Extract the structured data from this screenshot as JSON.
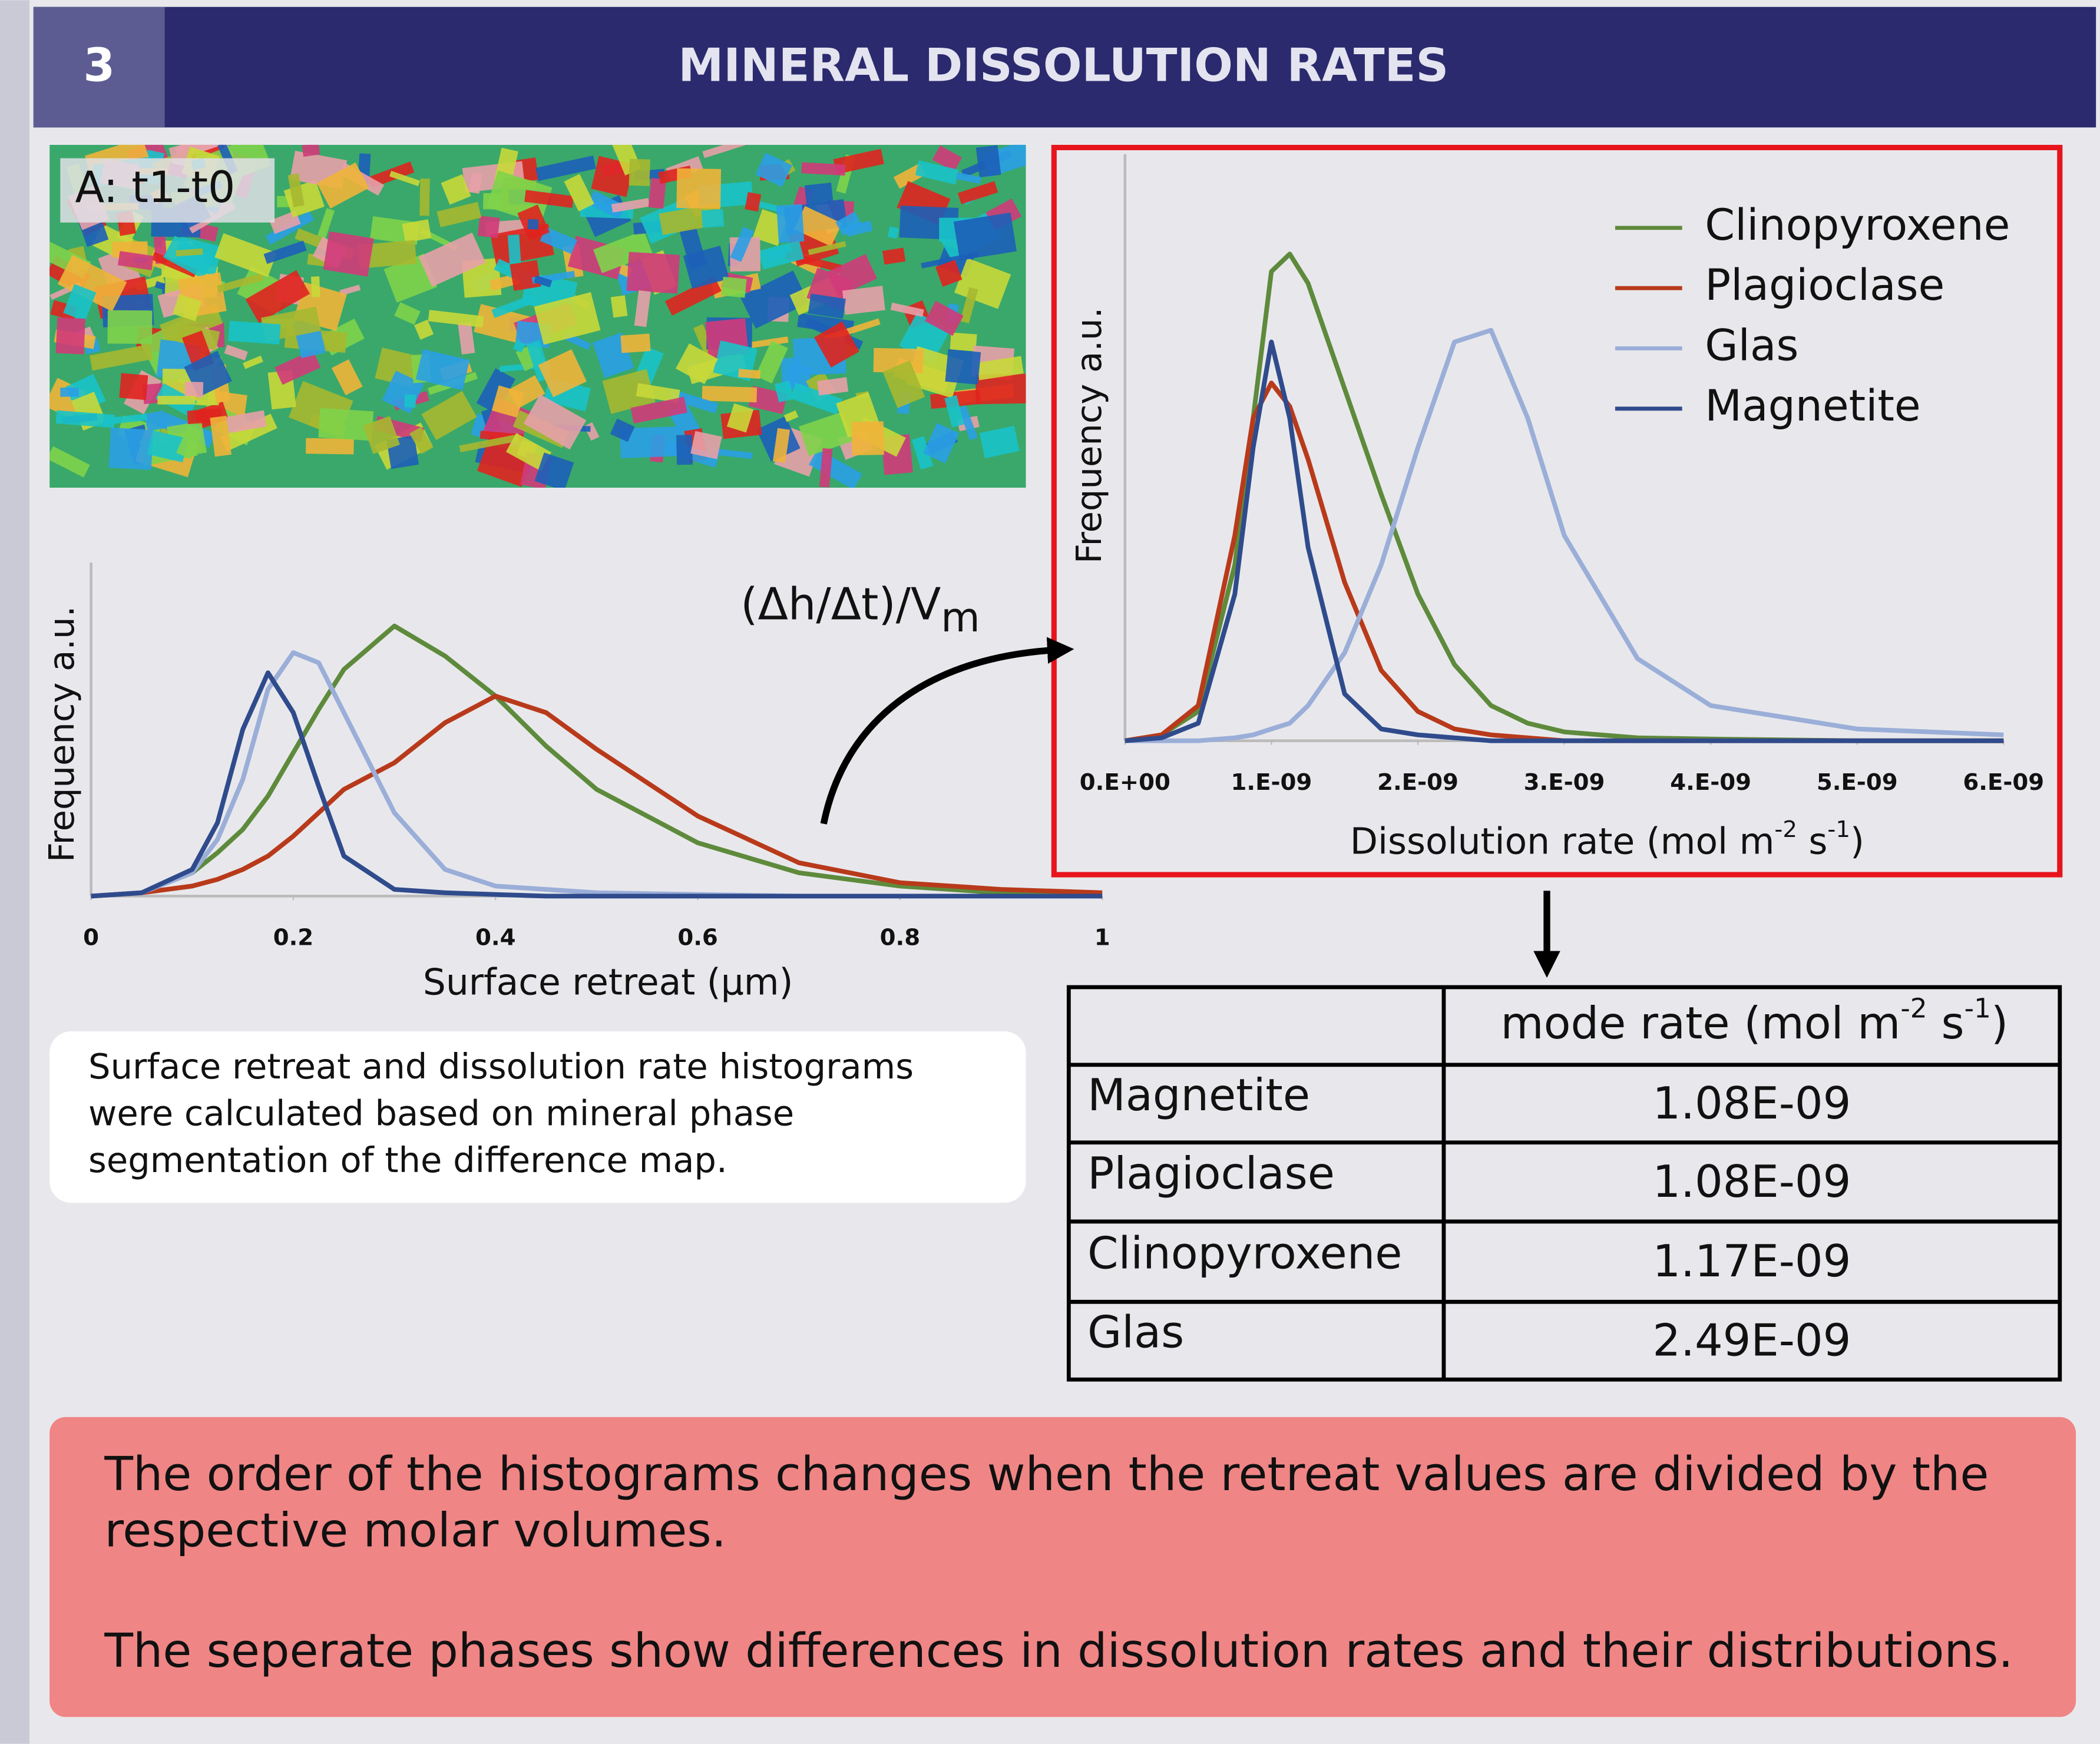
{
  "header": {
    "number": "3",
    "title": "MINERAL DISSOLUTION RATES"
  },
  "image": {
    "label": "A: t1-t0"
  },
  "chart_data": [
    {
      "type": "line",
      "xlabel": [
        "Surface retreat (μm)"
      ],
      "ylabel": "Frequency a.u.",
      "x": [
        0,
        0.05,
        0.1,
        0.125,
        0.15,
        0.175,
        0.2,
        0.225,
        0.25,
        0.3,
        0.35,
        0.4,
        0.45,
        0.5,
        0.6,
        0.7,
        0.8,
        0.9,
        1
      ],
      "xlim": [
        0,
        1
      ],
      "xticks": [
        0,
        0.2,
        0.4,
        0.6,
        0.8,
        1
      ],
      "ylim": [
        0,
        1
      ],
      "series": [
        {
          "color": "#5e8a3c",
          "values": [
            0,
            0.01,
            0.07,
            0.13,
            0.2,
            0.3,
            0.43,
            0.56,
            0.68,
            0.81,
            0.72,
            0.6,
            0.45,
            0.32,
            0.16,
            0.07,
            0.03,
            0.01,
            0.005
          ]
        },
        {
          "color": "#b83a1a",
          "values": [
            0,
            0.01,
            0.03,
            0.05,
            0.08,
            0.12,
            0.18,
            0.25,
            0.32,
            0.4,
            0.52,
            0.6,
            0.55,
            0.44,
            0.24,
            0.1,
            0.04,
            0.02,
            0.01
          ]
        },
        {
          "color": "#9aaed8",
          "values": [
            0,
            0.01,
            0.07,
            0.17,
            0.35,
            0.62,
            0.73,
            0.7,
            0.55,
            0.25,
            0.08,
            0.03,
            0.02,
            0.01,
            0.005,
            0,
            0,
            0,
            0
          ]
        },
        {
          "color": "#2f4b8c",
          "values": [
            0,
            0.01,
            0.08,
            0.22,
            0.5,
            0.67,
            0.55,
            0.33,
            0.12,
            0.02,
            0.01,
            0.005,
            0,
            0,
            0,
            0,
            0,
            0,
            0
          ]
        }
      ]
    },
    {
      "type": "line",
      "xlabel": [
        "Dissolution rate (mol m",
        "-2",
        " s",
        "-1",
        ")"
      ],
      "ylabel": "Frequency a.u.",
      "x": [
        0,
        2.5e-10,
        5e-10,
        7.5e-10,
        8.75e-10,
        1e-09,
        1.125e-09,
        1.25e-09,
        1.5e-09,
        1.75e-09,
        2e-09,
        2.25e-09,
        2.5e-09,
        2.75e-09,
        3e-09,
        3.5e-09,
        4e-09,
        5e-09,
        6e-09
      ],
      "xlim": [
        0,
        6e-09
      ],
      "xticks": [
        {
          "value": 0,
          "label": "0.E+00"
        },
        {
          "value": 1e-09,
          "label": "1.E-09"
        },
        {
          "value": 2e-09,
          "label": "2.E-09"
        },
        {
          "value": 3e-09,
          "label": "3.E-09"
        },
        {
          "value": 4e-09,
          "label": "4.E-09"
        },
        {
          "value": 5e-09,
          "label": "5.E-09"
        },
        {
          "value": 6e-09,
          "label": "6.E-09"
        }
      ],
      "ylim": [
        0,
        1
      ],
      "legend": "upper right",
      "series": [
        {
          "name": "Clinopyroxene",
          "color": "#5e8a3c",
          "values": [
            0,
            0.01,
            0.05,
            0.3,
            0.55,
            0.8,
            0.83,
            0.78,
            0.6,
            0.42,
            0.25,
            0.13,
            0.06,
            0.03,
            0.015,
            0.005,
            0.003,
            0,
            0
          ]
        },
        {
          "name": "Plagioclase",
          "color": "#b83a1a",
          "values": [
            0,
            0.01,
            0.06,
            0.35,
            0.55,
            0.61,
            0.57,
            0.48,
            0.27,
            0.12,
            0.05,
            0.02,
            0.01,
            0.005,
            0,
            0,
            0,
            0,
            0
          ]
        },
        {
          "name": "Glas",
          "color": "#9aaed8",
          "values": [
            0,
            0,
            0,
            0.005,
            0.01,
            0.02,
            0.03,
            0.06,
            0.15,
            0.3,
            0.5,
            0.68,
            0.7,
            0.55,
            0.35,
            0.14,
            0.06,
            0.02,
            0.01
          ]
        },
        {
          "name": "Magnetite",
          "color": "#2f4b8c",
          "values": [
            0,
            0.005,
            0.03,
            0.25,
            0.5,
            0.68,
            0.55,
            0.33,
            0.08,
            0.02,
            0.01,
            0.005,
            0,
            0,
            0,
            0,
            0,
            0,
            0
          ]
        }
      ]
    }
  ],
  "annotation": [
    "(Δh/Δt)/V",
    "m"
  ],
  "caption": [
    "Surface retreat and dissolution rate histograms",
    "were calculated based on mineral phase",
    "segmentation of the difference map."
  ],
  "table": {
    "header": [
      "mode rate (mol m",
      "-2",
      " s",
      "-1",
      ")"
    ],
    "rows": [
      [
        "Magnetite",
        "1.08E-09"
      ],
      [
        "Plagioclase",
        "1.08E-09"
      ],
      [
        "Clinopyroxene",
        "1.17E-09"
      ],
      [
        "Glas",
        "2.49E-09"
      ]
    ]
  },
  "conclusion": [
    [
      "The order of the histograms changes when the retreat values are divided by the",
      "respective molar volumes."
    ],
    [
      "The seperate phases show differences in dissolution rates and their distributions."
    ]
  ]
}
